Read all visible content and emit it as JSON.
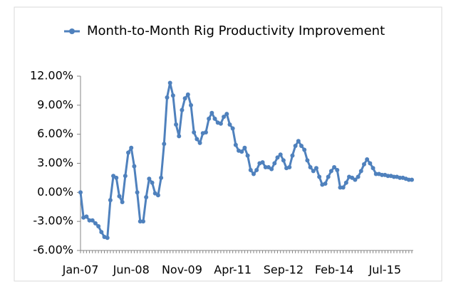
{
  "chart_data": {
    "type": "line",
    "categories": [
      "Jan-07",
      null,
      null,
      null,
      null,
      null,
      null,
      null,
      null,
      null,
      null,
      null,
      null,
      null,
      null,
      null,
      null,
      "Jun-08",
      null,
      null,
      null,
      null,
      null,
      null,
      null,
      null,
      null,
      null,
      null,
      null,
      null,
      null,
      null,
      null,
      "Nov-09",
      null,
      null,
      null,
      null,
      null,
      null,
      null,
      null,
      null,
      null,
      null,
      null,
      null,
      null,
      null,
      null,
      "Apr-11",
      null,
      null,
      null,
      null,
      null,
      null,
      null,
      null,
      null,
      null,
      null,
      null,
      null,
      null,
      null,
      null,
      "Sep-12",
      null,
      null,
      null,
      null,
      null,
      null,
      null,
      null,
      null,
      null,
      null,
      null,
      null,
      null,
      null,
      null,
      "Feb-14",
      null,
      null,
      null,
      null,
      null,
      null,
      null,
      null,
      null,
      null,
      null,
      null,
      null,
      null,
      null,
      null,
      "Jul-15",
      null,
      null,
      null,
      null,
      null,
      null,
      null,
      null,
      null
    ],
    "series": [
      {
        "name": "Month-to-Month Rig Productivity Improvement",
        "color": "#4f81bd",
        "values": [
          0,
          -2.6,
          -2.5,
          -2.9,
          -2.9,
          -3.2,
          -3.5,
          -4.1,
          -4.6,
          -4.7,
          -0.8,
          1.7,
          1.5,
          -0.4,
          -1.0,
          1.7,
          4.1,
          4.6,
          2.7,
          0,
          -3.0,
          -3.0,
          -0.5,
          1.4,
          1.0,
          -0.1,
          -0.3,
          1.5,
          5.0,
          9.8,
          11.3,
          10.0,
          7.0,
          5.8,
          8.5,
          9.7,
          10.1,
          9.0,
          6.2,
          5.5,
          5.1,
          6.1,
          6.2,
          7.6,
          8.2,
          7.6,
          7.2,
          7.1,
          7.8,
          8.1,
          7.0,
          6.6,
          4.9,
          4.3,
          4.2,
          4.6,
          3.8,
          2.3,
          1.9,
          2.3,
          3.0,
          3.1,
          2.6,
          2.6,
          2.4,
          3.0,
          3.6,
          3.9,
          3.3,
          2.5,
          2.6,
          3.8,
          4.8,
          5.3,
          4.8,
          4.4,
          3.3,
          2.6,
          2.2,
          2.5,
          1.6,
          0.8,
          0.9,
          1.6,
          2.2,
          2.6,
          2.3,
          0.5,
          0.5,
          1.0,
          1.6,
          1.5,
          1.3,
          1.6,
          2.2,
          2.9,
          3.4,
          3.0,
          2.5,
          1.9,
          1.9,
          1.8,
          1.8,
          1.7,
          1.7,
          1.6,
          1.6,
          1.5,
          1.5,
          1.4,
          1.3,
          1.3
        ]
      }
    ],
    "ylim": [
      -6,
      12
    ],
    "yticks": [
      {
        "value": -6,
        "label": "-6.00%"
      },
      {
        "value": -3,
        "label": "-3.00%"
      },
      {
        "value": 0,
        "label": "0.00%"
      },
      {
        "value": 3,
        "label": "3.00%"
      },
      {
        "value": 6,
        "label": "6.00%"
      },
      {
        "value": 9,
        "label": "9.00%"
      },
      {
        "value": 12,
        "label": "12.00%"
      }
    ],
    "grid": false,
    "legend": "top"
  }
}
